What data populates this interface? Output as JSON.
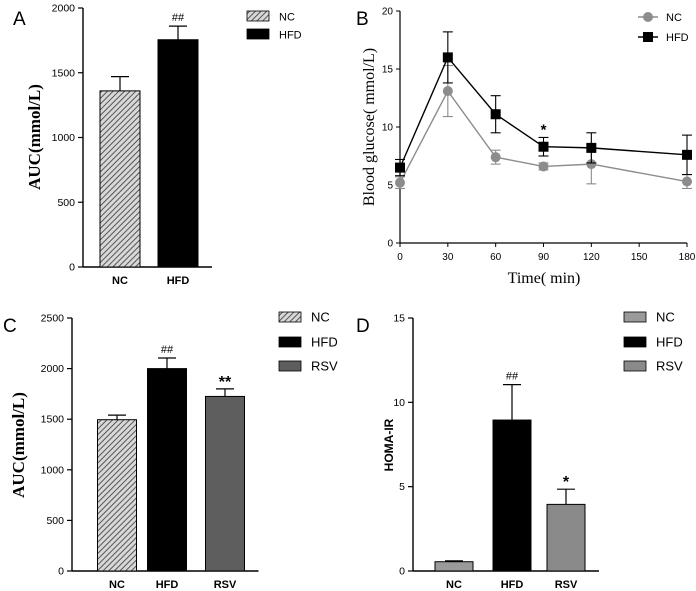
{
  "colors": {
    "black": "#000000",
    "gray": "#8c8c8c",
    "lightgray": "#9a9a9a",
    "darkgray": "#5e5e5e",
    "hatch": "#6b6b6b"
  },
  "chart_data": [
    {
      "panel": "A",
      "type": "bar",
      "categories": [
        "NC",
        "HFD"
      ],
      "values": [
        1360,
        1755
      ],
      "errors": [
        110,
        105
      ],
      "annotations": [
        "",
        "##"
      ],
      "ylabel": "AUC(mmol/L)",
      "ylim": [
        0,
        2000
      ],
      "yticks": [
        0,
        500,
        1000,
        1500,
        2000
      ],
      "legend": [
        "NC",
        "HFD"
      ],
      "legend_position": "top-right"
    },
    {
      "panel": "B",
      "type": "line",
      "x": [
        0,
        30,
        60,
        90,
        120,
        180
      ],
      "series": [
        {
          "name": "NC",
          "values": [
            5.2,
            13.1,
            7.4,
            6.6,
            6.8,
            5.3
          ],
          "errors": [
            0.5,
            2.2,
            0.6,
            0.3,
            1.7,
            0.6
          ]
        },
        {
          "name": "HFD",
          "values": [
            6.5,
            16.0,
            11.1,
            8.3,
            8.2,
            7.6
          ],
          "errors": [
            0.7,
            2.2,
            1.6,
            0.8,
            1.3,
            1.7
          ]
        }
      ],
      "annotations": [
        {
          "x": 90,
          "text": "*"
        }
      ],
      "xlabel": "Time( min)",
      "ylabel": "Blood glucose( mmol/L)",
      "xlim": [
        0,
        180
      ],
      "ylim": [
        0,
        20
      ],
      "xticks": [
        0,
        30,
        60,
        90,
        120,
        150,
        180
      ],
      "yticks": [
        0,
        5,
        10,
        15,
        20
      ],
      "legend_position": "top-right"
    },
    {
      "panel": "C",
      "type": "bar",
      "categories": [
        "NC",
        "HFD",
        "RSV"
      ],
      "values": [
        1495,
        2000,
        1725
      ],
      "errors": [
        45,
        105,
        75
      ],
      "annotations": [
        "",
        "##",
        "**"
      ],
      "ylabel": "AUC(mmol/L)",
      "ylim": [
        0,
        2500
      ],
      "yticks": [
        0,
        500,
        1000,
        1500,
        2000,
        2500
      ],
      "legend": [
        "NC",
        "HFD",
        "RSV"
      ],
      "legend_position": "top-right"
    },
    {
      "panel": "D",
      "type": "bar",
      "categories": [
        "NC",
        "HFD",
        "RSV"
      ],
      "values": [
        0.55,
        8.95,
        3.95
      ],
      "errors": [
        0.05,
        2.1,
        0.9
      ],
      "annotations": [
        "",
        "##",
        "*"
      ],
      "ylabel": "HOMA-IR",
      "ylim": [
        0,
        15
      ],
      "yticks": [
        0,
        5,
        10,
        15
      ],
      "legend": [
        "NC",
        "HFD",
        "RSV"
      ],
      "legend_position": "top-right"
    }
  ]
}
